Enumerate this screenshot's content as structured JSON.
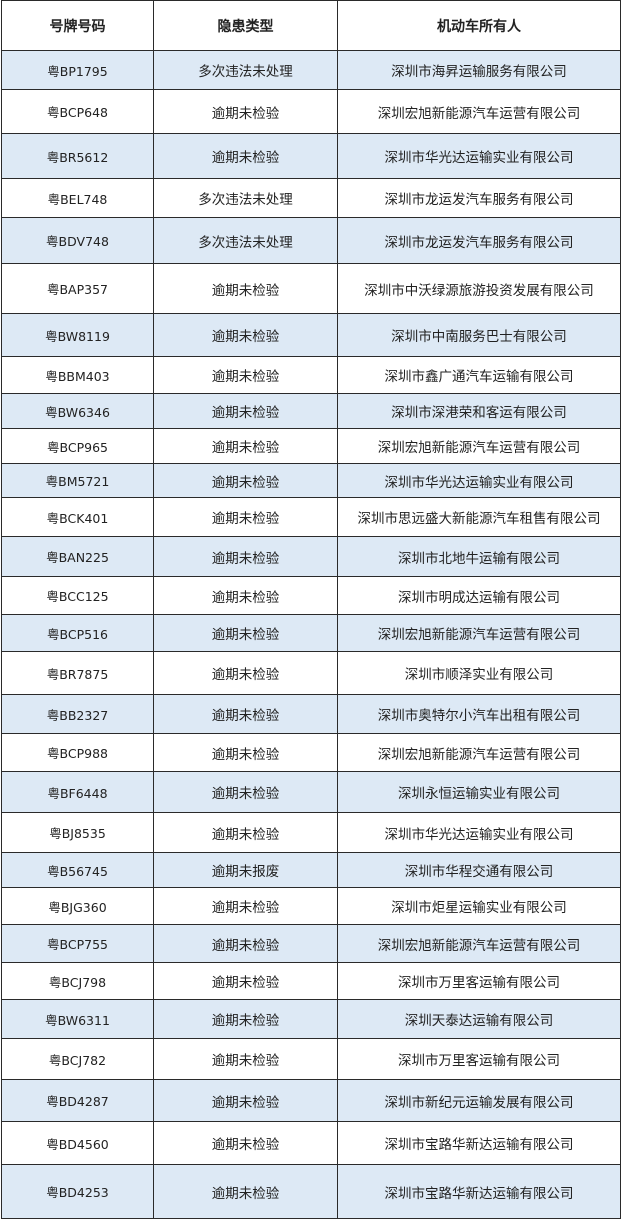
{
  "table": {
    "headers": [
      "号牌号码",
      "隐患类型",
      "机动车所有人"
    ],
    "shade_color": "#dde9f5",
    "rows": [
      [
        "粤BP1795",
        "多次违法未处理",
        "深圳市海昇运输服务有限公司"
      ],
      [
        "粤BCP648",
        "逾期未检验",
        "深圳宏旭新能源汽车运营有限公司"
      ],
      [
        "粤BR5612",
        "逾期未检验",
        "深圳市华光达运输实业有限公司"
      ],
      [
        "粤BEL748",
        "多次违法未处理",
        "深圳市龙运发汽车服务有限公司"
      ],
      [
        "粤BDV748",
        "多次违法未处理",
        "深圳市龙运发汽车服务有限公司"
      ],
      [
        "粤BAP357",
        "逾期未检验",
        "深圳市中沃绿源旅游投资发展有限公司"
      ],
      [
        "粤BW8119",
        "逾期未检验",
        "深圳市中南服务巴士有限公司"
      ],
      [
        "粤BBM403",
        "逾期未检验",
        "深圳市鑫广通汽车运输有限公司"
      ],
      [
        "粤BW6346",
        "逾期未检验",
        "深圳市深港荣和客运有限公司"
      ],
      [
        "粤BCP965",
        "逾期未检验",
        "深圳宏旭新能源汽车运营有限公司"
      ],
      [
        "粤BM5721",
        "逾期未检验",
        "深圳市华光达运输实业有限公司"
      ],
      [
        "粤BCK401",
        "逾期未检验",
        "深圳市思远盛大新能源汽车租售有限公司"
      ],
      [
        "粤BAN225",
        "逾期未检验",
        "深圳市北地牛运输有限公司"
      ],
      [
        "粤BCC125",
        "逾期未检验",
        "深圳市明成达运输有限公司"
      ],
      [
        "粤BCP516",
        "逾期未检验",
        "深圳宏旭新能源汽车运营有限公司"
      ],
      [
        "粤BR7875",
        "逾期未检验",
        "深圳市顺泽实业有限公司"
      ],
      [
        "粤BB2327",
        "逾期未检验",
        "深圳市奥特尔小汽车出租有限公司"
      ],
      [
        "粤BCP988",
        "逾期未检验",
        "深圳宏旭新能源汽车运营有限公司"
      ],
      [
        "粤BF6448",
        "逾期未检验",
        "深圳永恒运输实业有限公司"
      ],
      [
        "粤BJ8535",
        "逾期未检验",
        "深圳市华光达运输实业有限公司"
      ],
      [
        "粤B56745",
        "逾期未报废",
        "深圳市华程交通有限公司"
      ],
      [
        "粤BJG360",
        "逾期未检验",
        "深圳市炬星运输实业有限公司"
      ],
      [
        "粤BCP755",
        "逾期未检验",
        "深圳宏旭新能源汽车运营有限公司"
      ],
      [
        "粤BCJ798",
        "逾期未检验",
        "深圳市万里客运输有限公司"
      ],
      [
        "粤BW6311",
        "逾期未检验",
        "深圳天泰达运输有限公司"
      ],
      [
        "粤BCJ782",
        "逾期未检验",
        "深圳市万里客运输有限公司"
      ],
      [
        "粤BD4287",
        "逾期未检验",
        "深圳市新纪元运输发展有限公司"
      ],
      [
        "粤BD4560",
        "逾期未检验",
        "深圳市宝路华新达运输有限公司"
      ],
      [
        "粤BD4253",
        "逾期未检验",
        "深圳市宝路华新达运输有限公司"
      ]
    ]
  }
}
